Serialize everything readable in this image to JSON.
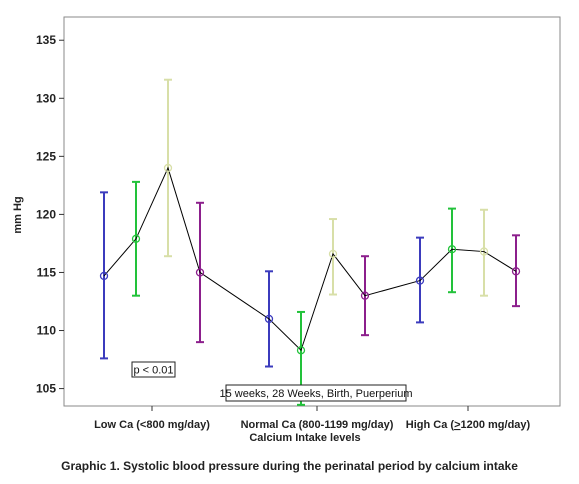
{
  "caption": "Graphic 1. Systolic blood pressure during the perinatal period by calcium intake",
  "colors": {
    "blue": "#3b3bbd",
    "green": "#22c23a",
    "pale": "#d8dfa8",
    "purple": "#8c1f8c",
    "line": "#000000"
  },
  "chart_data": {
    "type": "line",
    "xlabel": "Calcium Intake levels",
    "ylabel": "mm Hg",
    "ylim": [
      103.5,
      137
    ],
    "yticks": [
      105,
      110,
      115,
      120,
      125,
      130,
      135
    ],
    "categories": [
      "Low Ca (<800 mg/day)",
      "Normal Ca (800-1199 mg/day)",
      "High Ca (≥1200 mg/day)"
    ],
    "category_parts": [
      {
        "pre": "Low Ca (<800 mg/day)",
        "underline": "",
        "post": ""
      },
      {
        "pre": "Normal Ca (800-1199 mg/day)",
        "underline": "",
        "post": ""
      },
      {
        "pre": "High Ca (",
        "underline": ">",
        "post": "1200 mg/day)"
      }
    ],
    "legend_text": "15 weeks, 28 Weeks, Birth, Puerperium",
    "annotation": "p < 0.01",
    "grid": false,
    "series": [
      {
        "name": "15 weeks",
        "color": "#3b3bbd",
        "mean": [
          114.7,
          111.0,
          114.3
        ],
        "lower": [
          107.6,
          106.9,
          110.7
        ],
        "upper": [
          121.9,
          115.1,
          118.0
        ]
      },
      {
        "name": "28 Weeks",
        "color": "#22c23a",
        "mean": [
          117.9,
          108.3,
          117.0
        ],
        "lower": [
          113.0,
          103.6,
          113.3
        ],
        "upper": [
          122.8,
          111.6,
          120.5
        ]
      },
      {
        "name": "Birth",
        "color": "#d8dfa8",
        "mean": [
          124.0,
          116.6,
          116.8
        ],
        "lower": [
          116.4,
          113.1,
          113.0
        ],
        "upper": [
          131.6,
          119.6,
          120.4
        ]
      },
      {
        "name": "Puerperium",
        "color": "#8c1f8c",
        "mean": [
          115.0,
          113.0,
          115.1
        ],
        "lower": [
          109.0,
          109.6,
          112.1
        ],
        "upper": [
          121.0,
          116.4,
          118.2
        ]
      }
    ]
  }
}
